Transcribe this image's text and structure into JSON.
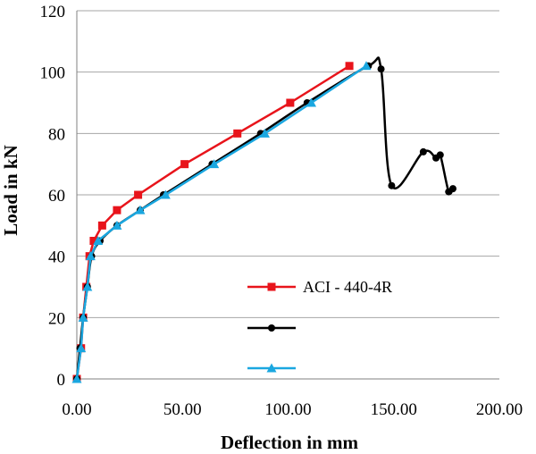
{
  "chart_data": {
    "type": "line",
    "xlabel": "Deflection in mm",
    "ylabel": "Load in kN",
    "xlim": [
      0,
      200
    ],
    "ylim": [
      0,
      120
    ],
    "x_ticks": [
      "0.00",
      "50.00",
      "100.00",
      "150.00",
      "200.00"
    ],
    "y_ticks": [
      "0",
      "20",
      "40",
      "60",
      "80",
      "100",
      "120"
    ],
    "grid": "horizontal",
    "legend_position": "lower-right",
    "series": [
      {
        "name": "ACI - 440-4R",
        "color": "#e8141b",
        "marker": "square",
        "points": [
          [
            0,
            0
          ],
          [
            2,
            10
          ],
          [
            3,
            20
          ],
          [
            4.5,
            30
          ],
          [
            6,
            40
          ],
          [
            8,
            45
          ],
          [
            12,
            50
          ],
          [
            19,
            55
          ],
          [
            29,
            60
          ],
          [
            51,
            70
          ],
          [
            76,
            80
          ],
          [
            101,
            90
          ],
          [
            129,
            102
          ]
        ]
      },
      {
        "color": "#000000",
        "marker": "circle",
        "points": [
          [
            0,
            0
          ],
          [
            1.5,
            10
          ],
          [
            3,
            20
          ],
          [
            5,
            30
          ],
          [
            7,
            40
          ],
          [
            11,
            45
          ],
          [
            19,
            50
          ],
          [
            30,
            55
          ],
          [
            41,
            60
          ],
          [
            64,
            70
          ],
          [
            87,
            80
          ],
          [
            109,
            90
          ],
          [
            138,
            102
          ],
          [
            144,
            101
          ],
          [
            149,
            63
          ],
          [
            164,
            74
          ],
          [
            170,
            72
          ],
          [
            172,
            73
          ],
          [
            176,
            61
          ],
          [
            178,
            62
          ]
        ]
      },
      {
        "color": "#1aa7e0",
        "marker": "triangle",
        "points": [
          [
            0,
            0
          ],
          [
            2,
            10
          ],
          [
            3,
            20
          ],
          [
            5,
            30
          ],
          [
            6.5,
            40
          ],
          [
            10,
            45
          ],
          [
            19,
            50
          ],
          [
            30,
            55
          ],
          [
            42,
            60
          ],
          [
            65,
            70
          ],
          [
            89,
            80
          ],
          [
            111,
            90
          ],
          [
            137,
            102
          ]
        ]
      }
    ]
  }
}
